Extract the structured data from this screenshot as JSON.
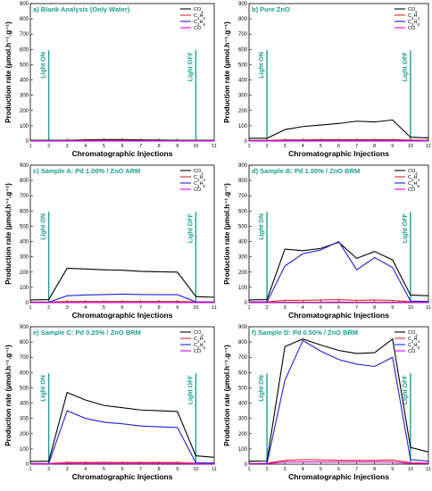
{
  "chart_data": [
    {
      "type": "line",
      "title": "a) Blank Analysis (Only Water)",
      "xlabel": "Chromatographic Injections",
      "ylabel": "Production rate (µmol.h⁻¹.g⁻¹)",
      "xlim": [
        1,
        11
      ],
      "ylim": [
        0,
        900
      ],
      "x": [
        1,
        2,
        3,
        4,
        5,
        6,
        7,
        8,
        9,
        10,
        11
      ],
      "series": [
        {
          "name": "CO₂",
          "color": "#000000",
          "values": [
            5,
            5,
            5,
            8,
            10,
            10,
            8,
            6,
            5,
            5,
            5
          ]
        },
        {
          "name": "C₂H₄",
          "color": "#d62728",
          "values": [
            3,
            3,
            3,
            4,
            5,
            5,
            4,
            3,
            3,
            3,
            3
          ]
        },
        {
          "name": "C₂H₆",
          "color": "#1f1fd6",
          "values": [
            2,
            2,
            2,
            2,
            3,
            3,
            3,
            2,
            2,
            2,
            2
          ]
        },
        {
          "name": "CO",
          "color": "#e000e0",
          "values": [
            1,
            1,
            1,
            1,
            1,
            1,
            1,
            1,
            1,
            1,
            1
          ]
        }
      ],
      "markers": [
        {
          "x": 2,
          "label": "Light ON"
        },
        {
          "x": 10,
          "label": "Light OFF"
        }
      ],
      "legend_position": "top-right",
      "xticks": [
        "1",
        "2",
        "3",
        "4",
        "5",
        "6",
        "7",
        "8",
        "9",
        "10",
        "11"
      ],
      "yticks": [
        "0",
        "100",
        "200",
        "300",
        "400",
        "500",
        "600",
        "700",
        "800",
        "900"
      ]
    },
    {
      "type": "line",
      "title": "b) Pure ZnO",
      "xlabel": "Chromatographic Injections",
      "ylabel": "Production rate (µmol.h⁻¹.g⁻¹)",
      "xlim": [
        1,
        11
      ],
      "ylim": [
        0,
        900
      ],
      "x": [
        1,
        2,
        3,
        4,
        5,
        6,
        7,
        8,
        9,
        10,
        11
      ],
      "series": [
        {
          "name": "CO₂",
          "color": "#000000",
          "values": [
            18,
            18,
            75,
            95,
            105,
            115,
            130,
            125,
            138,
            25,
            20
          ]
        },
        {
          "name": "C₂H₄",
          "color": "#d62728",
          "values": [
            4,
            4,
            8,
            8,
            9,
            9,
            9,
            9,
            9,
            6,
            5
          ]
        },
        {
          "name": "C₂H₆",
          "color": "#1f1fd6",
          "values": [
            2,
            2,
            4,
            4,
            4,
            4,
            4,
            4,
            4,
            3,
            3
          ]
        },
        {
          "name": "CO",
          "color": "#e000e0",
          "values": [
            1,
            1,
            2,
            2,
            2,
            2,
            2,
            2,
            2,
            1,
            1
          ]
        }
      ],
      "markers": [
        {
          "x": 2,
          "label": "Light ON"
        },
        {
          "x": 10,
          "label": "Light OFF"
        }
      ],
      "legend_position": "top-right",
      "xticks": [
        "1",
        "2",
        "3",
        "4",
        "5",
        "6",
        "7",
        "8",
        "9",
        "10",
        "11"
      ],
      "yticks": [
        "0",
        "100",
        "200",
        "300",
        "400",
        "500",
        "600",
        "700",
        "800",
        "900"
      ]
    },
    {
      "type": "line",
      "title": "c) Sample A: Pd 1.00% / ZnO ARM",
      "xlabel": "Chromatographic Injections",
      "ylabel": "Production rate (µmol.h⁻¹.g⁻¹)",
      "xlim": [
        1,
        11
      ],
      "ylim": [
        0,
        900
      ],
      "x": [
        1,
        2,
        3,
        4,
        5,
        6,
        7,
        8,
        9,
        10,
        11
      ],
      "series": [
        {
          "name": "CO₂",
          "color": "#000000",
          "values": [
            18,
            20,
            225,
            220,
            215,
            212,
            205,
            202,
            200,
            40,
            35
          ]
        },
        {
          "name": "C₂H₄",
          "color": "#d62728",
          "values": [
            4,
            4,
            8,
            8,
            8,
            8,
            8,
            8,
            8,
            5,
            5
          ]
        },
        {
          "name": "C₂H₆",
          "color": "#1f1fd6",
          "values": [
            3,
            3,
            45,
            50,
            53,
            56,
            53,
            52,
            52,
            5,
            4
          ]
        },
        {
          "name": "CO",
          "color": "#e000e0",
          "values": [
            1,
            1,
            2,
            2,
            2,
            2,
            2,
            2,
            2,
            1,
            1
          ]
        }
      ],
      "markers": [
        {
          "x": 2,
          "label": "Light ON"
        },
        {
          "x": 10,
          "label": "Light OFF"
        }
      ],
      "legend_position": "top-right",
      "xticks": [
        "1",
        "2",
        "3",
        "4",
        "5",
        "6",
        "7",
        "8",
        "9",
        "10",
        "11"
      ],
      "yticks": [
        "0",
        "100",
        "200",
        "300",
        "400",
        "500",
        "600",
        "700",
        "800",
        "900"
      ]
    },
    {
      "type": "line",
      "title": "d) Sample B: Pd 1.00% / ZnO BRM",
      "xlabel": "Chromatographic Injections",
      "ylabel": "Production rate (µmol.h⁻¹.g⁻¹)",
      "xlim": [
        1,
        11
      ],
      "ylim": [
        0,
        900
      ],
      "x": [
        1,
        2,
        3,
        4,
        5,
        6,
        7,
        8,
        9,
        10,
        11
      ],
      "series": [
        {
          "name": "CO₂",
          "color": "#000000",
          "values": [
            18,
            20,
            350,
            340,
            355,
            395,
            290,
            335,
            280,
            50,
            45
          ]
        },
        {
          "name": "C₂H₄",
          "color": "#d62728",
          "values": [
            5,
            5,
            15,
            15,
            17,
            20,
            15,
            17,
            14,
            6,
            6
          ]
        },
        {
          "name": "C₂H₆",
          "color": "#1f1fd6",
          "values": [
            4,
            4,
            240,
            320,
            345,
            400,
            215,
            295,
            230,
            10,
            8
          ]
        },
        {
          "name": "CO",
          "color": "#e000e0",
          "values": [
            2,
            2,
            3,
            3,
            3,
            4,
            3,
            3,
            3,
            2,
            2
          ]
        }
      ],
      "markers": [
        {
          "x": 2,
          "label": "Light ON"
        },
        {
          "x": 10,
          "label": "Light OFF"
        }
      ],
      "legend_position": "top-right",
      "xticks": [
        "1",
        "2",
        "3",
        "4",
        "5",
        "6",
        "7",
        "8",
        "9",
        "10",
        "11"
      ],
      "yticks": [
        "0",
        "100",
        "200",
        "300",
        "400",
        "500",
        "600",
        "700",
        "800",
        "900"
      ]
    },
    {
      "type": "line",
      "title": "e) Sample C: Pd 0.25% / ZnO BRM",
      "xlabel": "Chromatographic Injections",
      "ylabel": "Production rate (µmol.h⁻¹.g⁻¹)",
      "xlim": [
        1,
        11
      ],
      "ylim": [
        0,
        900
      ],
      "x": [
        1,
        2,
        3,
        4,
        5,
        6,
        7,
        8,
        9,
        10,
        11
      ],
      "series": [
        {
          "name": "CO₂",
          "color": "#000000",
          "values": [
            18,
            20,
            470,
            420,
            385,
            370,
            355,
            350,
            345,
            55,
            45
          ]
        },
        {
          "name": "C₂H₄",
          "color": "#d62728",
          "values": [
            4,
            5,
            12,
            12,
            12,
            12,
            12,
            12,
            12,
            6,
            5
          ]
        },
        {
          "name": "C₂H₆",
          "color": "#1f1fd6",
          "values": [
            3,
            4,
            350,
            300,
            275,
            265,
            250,
            245,
            240,
            10,
            8
          ]
        },
        {
          "name": "CO",
          "color": "#e000e0",
          "values": [
            1,
            2,
            5,
            5,
            5,
            5,
            5,
            5,
            5,
            2,
            2
          ]
        }
      ],
      "markers": [
        {
          "x": 2,
          "label": "Light ON"
        },
        {
          "x": 10,
          "label": "Light OFF"
        }
      ],
      "legend_position": "top-right",
      "xticks": [
        "1",
        "2",
        "3",
        "4",
        "5",
        "6",
        "7",
        "8",
        "9",
        "10",
        "11"
      ],
      "yticks": [
        "0",
        "100",
        "200",
        "300",
        "400",
        "500",
        "600",
        "700",
        "800",
        "900"
      ]
    },
    {
      "type": "line",
      "title": "f) Sample D: Pd 0.50% / ZnO BRM",
      "xlabel": "Chromatographic Injections",
      "ylabel": "Production rate (µmol.h⁻¹.g⁻¹)",
      "xlim": [
        1,
        11
      ],
      "ylim": [
        0,
        900
      ],
      "x": [
        1,
        2,
        3,
        4,
        5,
        6,
        7,
        8,
        9,
        10,
        11
      ],
      "series": [
        {
          "name": "CO₂",
          "color": "#000000",
          "values": [
            20,
            22,
            770,
            820,
            780,
            745,
            725,
            730,
            820,
            110,
            80
          ]
        },
        {
          "name": "C₂H₄",
          "color": "#d62728",
          "values": [
            5,
            6,
            25,
            30,
            28,
            26,
            25,
            25,
            28,
            10,
            8
          ]
        },
        {
          "name": "C₂H₆",
          "color": "#1f1fd6",
          "values": [
            4,
            5,
            550,
            810,
            740,
            685,
            655,
            640,
            700,
            30,
            20
          ]
        },
        {
          "name": "CO",
          "color": "#e000e0",
          "values": [
            2,
            3,
            15,
            15,
            15,
            15,
            15,
            15,
            15,
            5,
            4
          ]
        }
      ],
      "markers": [
        {
          "x": 2,
          "label": "Light ON"
        },
        {
          "x": 10,
          "label": "Light OFF"
        }
      ],
      "legend_position": "top-right",
      "xticks": [
        "1",
        "2",
        "3",
        "4",
        "5",
        "6",
        "7",
        "8",
        "9",
        "10",
        "11"
      ],
      "yticks": [
        "0",
        "100",
        "200",
        "300",
        "400",
        "500",
        "600",
        "700",
        "800",
        "900"
      ]
    }
  ],
  "colors": {
    "marker_line": "#1a9e8e",
    "title_text": "#1a9e8e",
    "axis": "#000000",
    "co2": "#000000",
    "c2h4": "#d62728",
    "c2h6": "#1f1fd6",
    "co": "#e000e0"
  }
}
